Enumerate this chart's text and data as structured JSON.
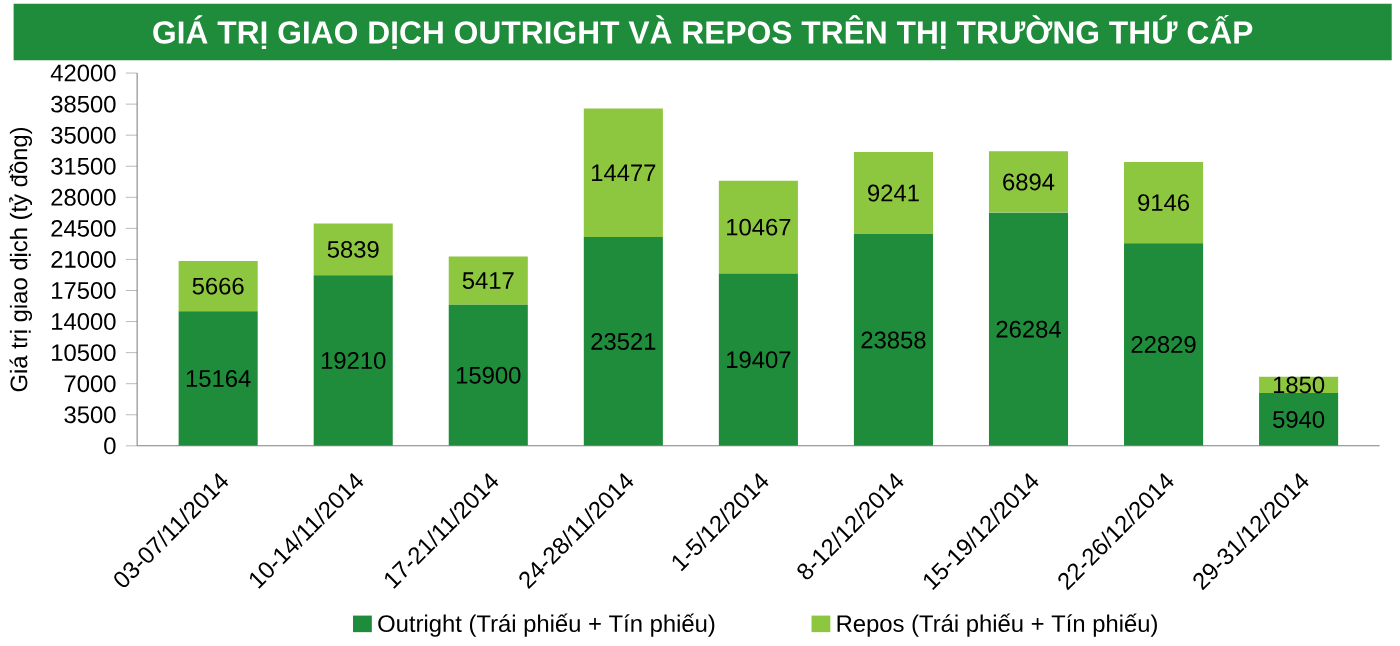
{
  "chart_data": {
    "type": "bar",
    "stacked": true,
    "title": "GIÁ TRỊ GIAO DỊCH OUTRIGHT VÀ REPOS TRÊN THỊ TRƯỜNG THỨ CẤP",
    "ylabel": "Giá trị giao dịch (tỷ đồng)",
    "categories": [
      "03-07/11/2014",
      "10-14/11/2014",
      "17-21/11/2014",
      "24-28/11/2014",
      "1-5/12/2014",
      "8-12/12/2014",
      "15-19/12/2014",
      "22-26/12/2014",
      "29-31/12/2014"
    ],
    "series": [
      {
        "name": "Outright (Trái phiếu + Tín phiếu)",
        "color": "#1e8c3a",
        "values": [
          15164,
          19210,
          15900,
          23521,
          19407,
          23858,
          26284,
          22829,
          5940
        ]
      },
      {
        "name": "Repos (Trái phiếu + Tín phiếu)",
        "color": "#8dc63f",
        "values": [
          5666,
          5839,
          5417,
          14477,
          10467,
          9241,
          6894,
          9146,
          1850
        ]
      }
    ],
    "ylim": [
      0,
      42000
    ],
    "yticks": [
      0,
      3500,
      7000,
      10500,
      14000,
      17500,
      21000,
      24500,
      28000,
      31500,
      35000,
      38500,
      42000
    ],
    "data_labels": true,
    "legend": "bottom",
    "grid": false
  }
}
